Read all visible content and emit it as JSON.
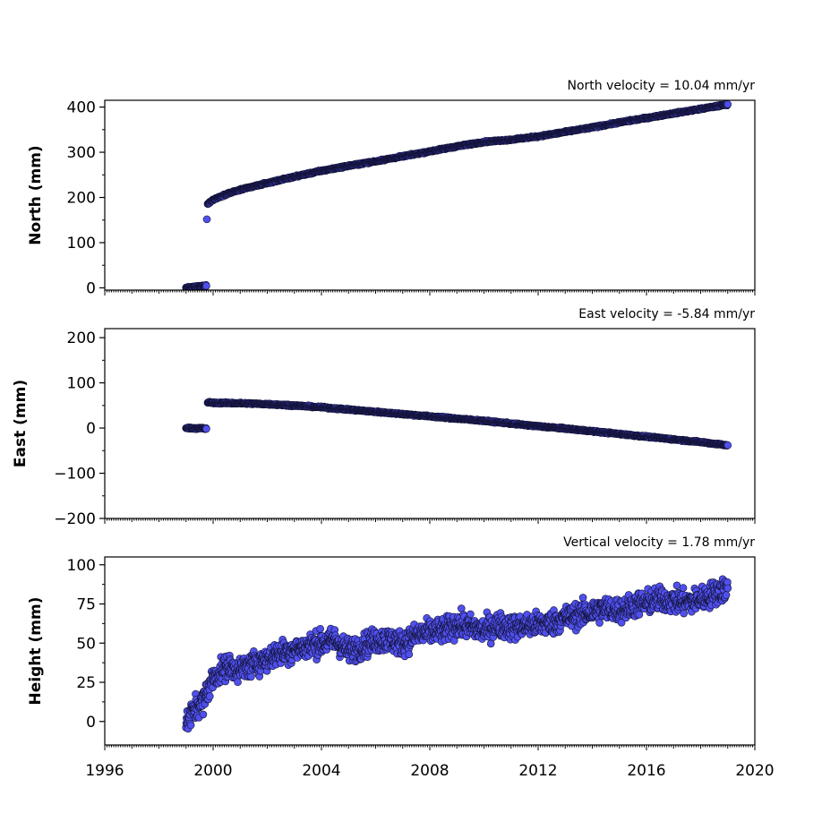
{
  "chart_data": [
    {
      "type": "scatter",
      "title": "North velocity = 10.04 mm/yr",
      "ylabel": "North (mm)",
      "ylim": [
        -5,
        415
      ],
      "yticks": [
        0,
        100,
        200,
        300,
        400
      ],
      "xlim": [
        1996,
        2020
      ],
      "x_axis_labels_shown": false,
      "series": [
        {
          "color": "#5050ee",
          "points": [
            [
              1999.0,
              0
            ],
            [
              1999.15,
              1
            ],
            [
              1999.3,
              2
            ],
            [
              1999.45,
              3
            ],
            [
              1999.6,
              4
            ],
            [
              1999.75,
              5
            ],
            [
              1999.77,
              153
            ],
            [
              1999.8,
              186
            ],
            [
              2000.0,
              195
            ],
            [
              2000.5,
              208
            ],
            [
              2001.0,
              217
            ],
            [
              2002.0,
              232
            ],
            [
              2003.0,
              246
            ],
            [
              2004.0,
              259
            ],
            [
              2005.0,
              270
            ],
            [
              2006.0,
              280
            ],
            [
              2007.0,
              291
            ],
            [
              2008.0,
              302
            ],
            [
              2009.0,
              313
            ],
            [
              2010.0,
              323
            ],
            [
              2011.0,
              328
            ],
            [
              2012.0,
              335
            ],
            [
              2013.0,
              345
            ],
            [
              2014.0,
              355
            ],
            [
              2015.0,
              366
            ],
            [
              2016.0,
              376
            ],
            [
              2017.0,
              386
            ],
            [
              2018.0,
              396
            ],
            [
              2019.0,
              406
            ]
          ]
        }
      ]
    },
    {
      "type": "scatter",
      "title": "East velocity = -5.84 mm/yr",
      "ylabel": "East (mm)",
      "ylim": [
        -200,
        220
      ],
      "yticks": [
        -200,
        -100,
        0,
        100,
        200
      ],
      "xlim": [
        1996,
        2020
      ],
      "x_axis_labels_shown": false,
      "series": [
        {
          "color": "#5050ee",
          "points": [
            [
              1999.0,
              0
            ],
            [
              1999.2,
              0
            ],
            [
              1999.4,
              -1
            ],
            [
              1999.6,
              0
            ],
            [
              1999.75,
              -2
            ],
            [
              1999.8,
              57
            ],
            [
              2000.0,
              56
            ],
            [
              2001.0,
              55
            ],
            [
              2002.0,
              53
            ],
            [
              2003.0,
              50
            ],
            [
              2004.0,
              46
            ],
            [
              2005.0,
              41
            ],
            [
              2006.0,
              36
            ],
            [
              2007.0,
              31
            ],
            [
              2008.0,
              26
            ],
            [
              2009.0,
              21
            ],
            [
              2010.0,
              16
            ],
            [
              2011.0,
              10
            ],
            [
              2012.0,
              4
            ],
            [
              2013.0,
              -1
            ],
            [
              2014.0,
              -7
            ],
            [
              2015.0,
              -13
            ],
            [
              2016.0,
              -19
            ],
            [
              2017.0,
              -25
            ],
            [
              2018.0,
              -31
            ],
            [
              2019.0,
              -38
            ]
          ]
        }
      ]
    },
    {
      "type": "scatter",
      "title": "Vertical velocity = 1.78 mm/yr",
      "ylabel": "Height (mm)",
      "ylim": [
        -15,
        105
      ],
      "yticks": [
        0,
        25,
        50,
        75,
        100
      ],
      "xlim": [
        1996,
        2020
      ],
      "xticks": [
        1996,
        2000,
        2004,
        2008,
        2012,
        2016,
        2020
      ],
      "series": [
        {
          "color": "#5050ee",
          "points": [
            [
              1999.0,
              -2
            ],
            [
              1999.2,
              5
            ],
            [
              1999.4,
              10
            ],
            [
              1999.6,
              12
            ],
            [
              1999.8,
              20
            ],
            [
              2000.0,
              28
            ],
            [
              2000.5,
              35
            ],
            [
              2001.0,
              33
            ],
            [
              2001.5,
              37
            ],
            [
              2002.0,
              40
            ],
            [
              2002.5,
              44
            ],
            [
              2003.0,
              46
            ],
            [
              2003.5,
              48
            ],
            [
              2004.0,
              50
            ],
            [
              2004.5,
              52
            ],
            [
              2005.0,
              45
            ],
            [
              2005.5,
              48
            ],
            [
              2006.0,
              52
            ],
            [
              2006.5,
              52
            ],
            [
              2007.0,
              50
            ],
            [
              2007.5,
              55
            ],
            [
              2008.0,
              57
            ],
            [
              2008.5,
              58
            ],
            [
              2009.0,
              62
            ],
            [
              2009.5,
              60
            ],
            [
              2010.0,
              58
            ],
            [
              2010.5,
              62
            ],
            [
              2011.0,
              60
            ],
            [
              2011.5,
              61
            ],
            [
              2012.0,
              62
            ],
            [
              2012.5,
              63
            ],
            [
              2013.0,
              66
            ],
            [
              2013.5,
              68
            ],
            [
              2014.0,
              70
            ],
            [
              2014.5,
              72
            ],
            [
              2015.0,
              71
            ],
            [
              2015.5,
              74
            ],
            [
              2016.0,
              76
            ],
            [
              2016.5,
              78
            ],
            [
              2017.0,
              77
            ],
            [
              2017.5,
              76
            ],
            [
              2018.0,
              78
            ],
            [
              2018.5,
              82
            ],
            [
              2019.0,
              85
            ]
          ]
        }
      ]
    }
  ]
}
